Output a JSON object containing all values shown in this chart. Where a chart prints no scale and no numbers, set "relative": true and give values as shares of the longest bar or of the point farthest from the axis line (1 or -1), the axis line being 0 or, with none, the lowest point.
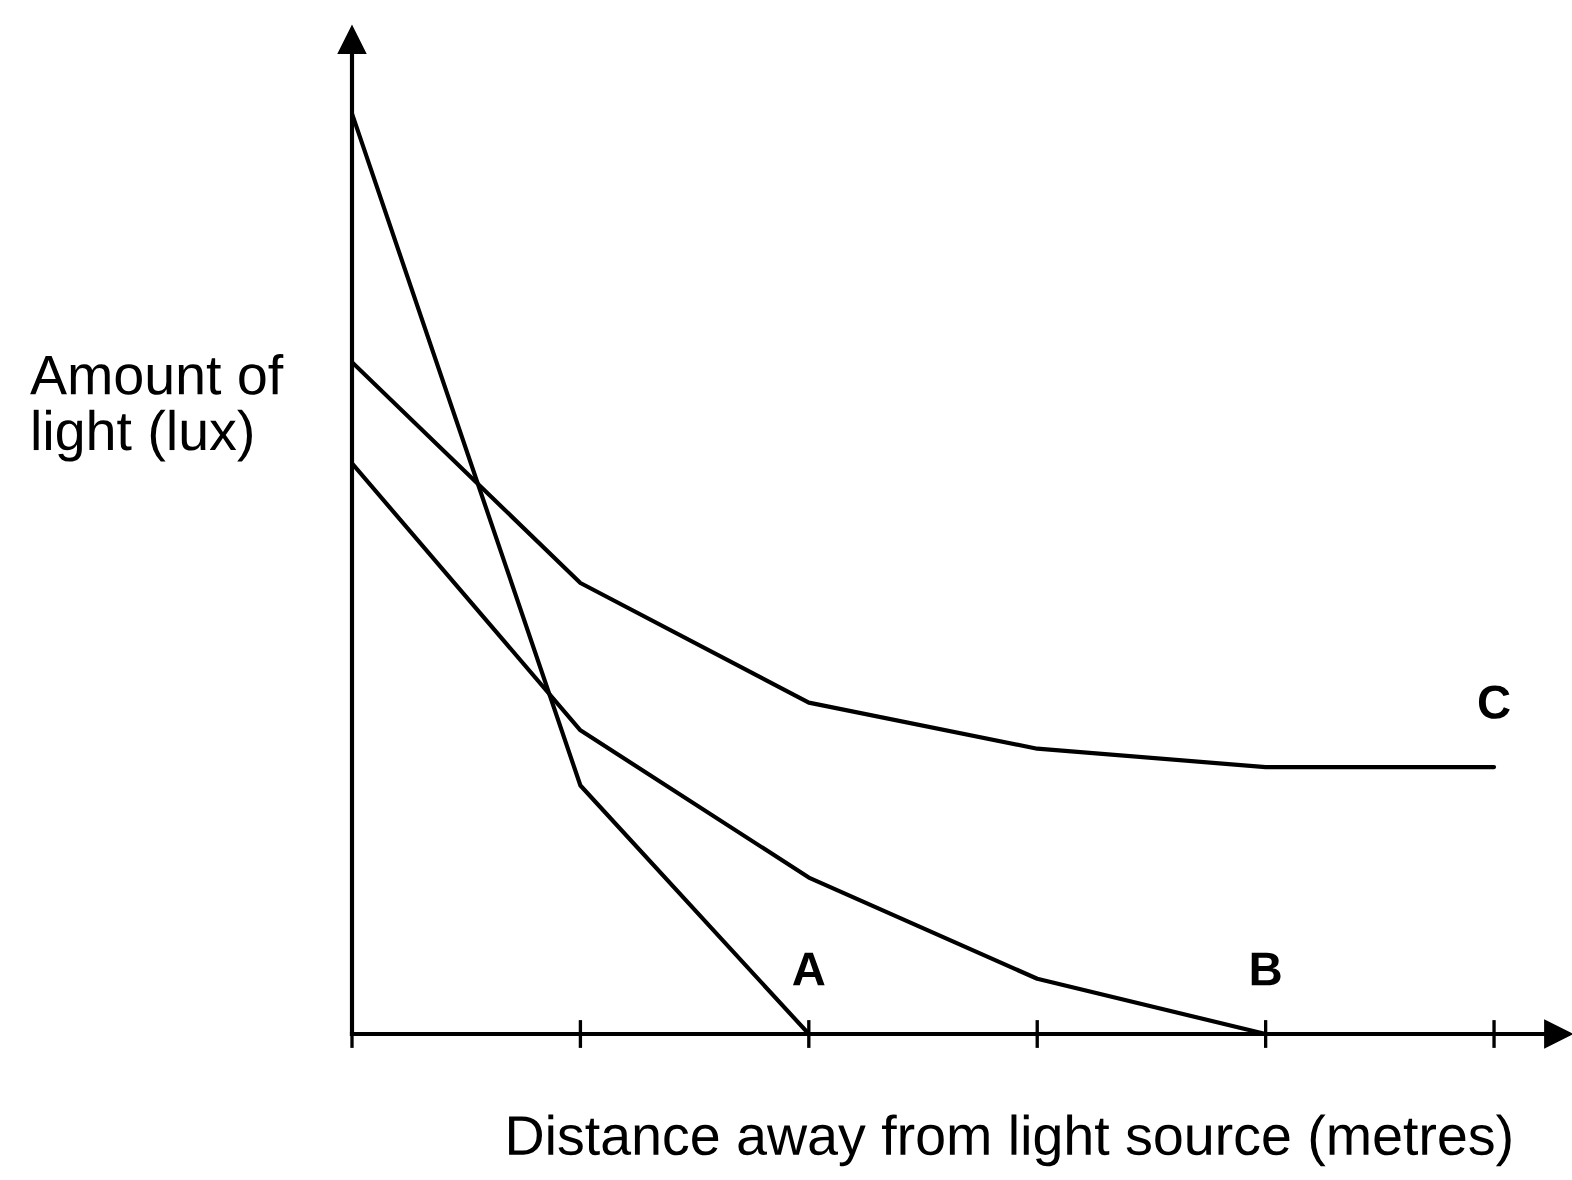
{
  "chart_data": {
    "type": "line",
    "relative": true,
    "xlabel": "Distance away from light source (metres)",
    "ylabel": "Amount of\nlight (lux)",
    "categories": [
      null,
      null,
      null,
      null,
      null,
      null
    ],
    "series": [
      {
        "name": "A",
        "color": "#000000",
        "values": [
          1,
          0.27,
          0,
          null,
          null,
          null
        ]
      },
      {
        "name": "B",
        "color": "#000000",
        "values": [
          0.62,
          0.33,
          0.17,
          0.06,
          0,
          null
        ]
      },
      {
        "name": "C",
        "color": "#000000",
        "values": [
          0.73,
          0.49,
          0.36,
          0.31,
          0.29,
          0.29
        ]
      }
    ]
  }
}
